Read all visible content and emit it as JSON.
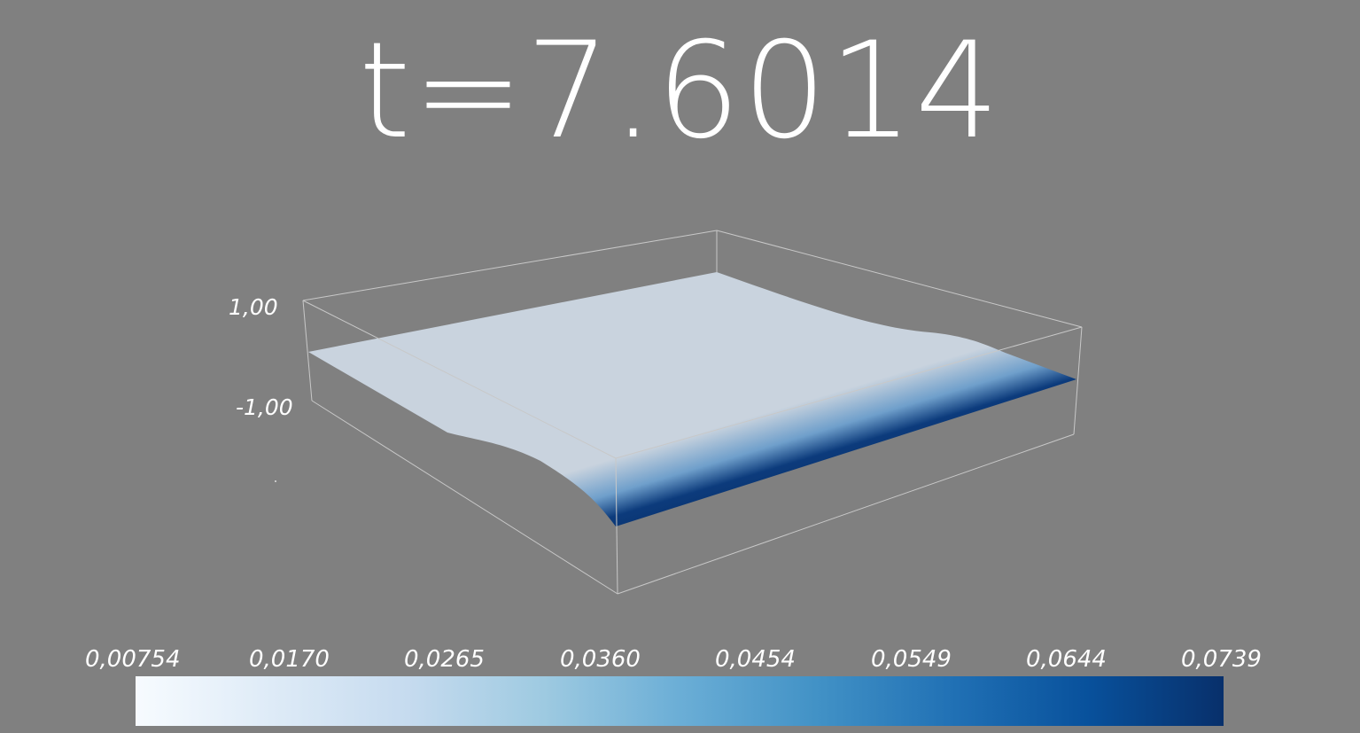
{
  "title": {
    "text": "t=7.6014"
  },
  "axes": {
    "z_max_label": "1,00",
    "z_min_label": "-1,00"
  },
  "colorbar": {
    "colormap": "Blues",
    "colors": [
      "#f7fbff",
      "#deebf7",
      "#c6dbef",
      "#9ecae1",
      "#6baed6",
      "#4292c6",
      "#2171b5",
      "#08519c",
      "#08306b"
    ],
    "ticks": [
      "0,00754",
      "0,0170",
      "0,0265",
      "0,0360",
      "0,0454",
      "0,0549",
      "0,0644",
      "0,0739"
    ]
  },
  "surface": {
    "base_color": "#c9d3de",
    "band_color": "#08306b",
    "box_color": "#c8c8c8"
  }
}
